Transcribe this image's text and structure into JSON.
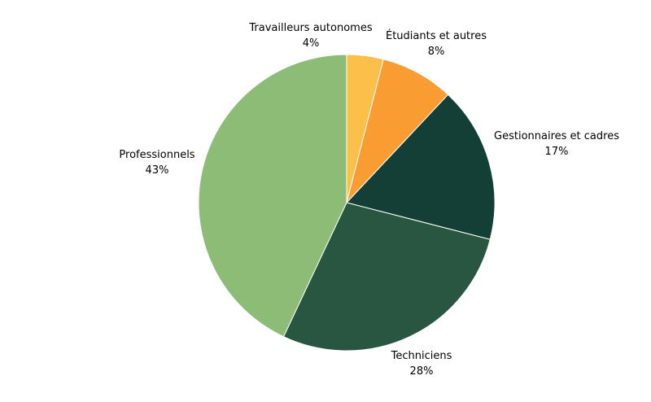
{
  "chart_data": {
    "type": "pie",
    "start_angle_deg": 0,
    "direction": "clockwise",
    "slices": [
      {
        "label": "Travailleurs autonomes",
        "value": 4,
        "display": "4%",
        "color": "#FCBF4A"
      },
      {
        "label": "Étudiants et autres",
        "value": 8,
        "display": "8%",
        "color": "#F99D33"
      },
      {
        "label": "Gestionnaires et cadres",
        "value": 17,
        "display": "17%",
        "color": "#143F36"
      },
      {
        "label": "Techniciens",
        "value": 28,
        "display": "28%",
        "color": "#285641"
      },
      {
        "label": "Professionnels",
        "value": 43,
        "display": "43%",
        "color": "#8CBC76"
      }
    ]
  }
}
